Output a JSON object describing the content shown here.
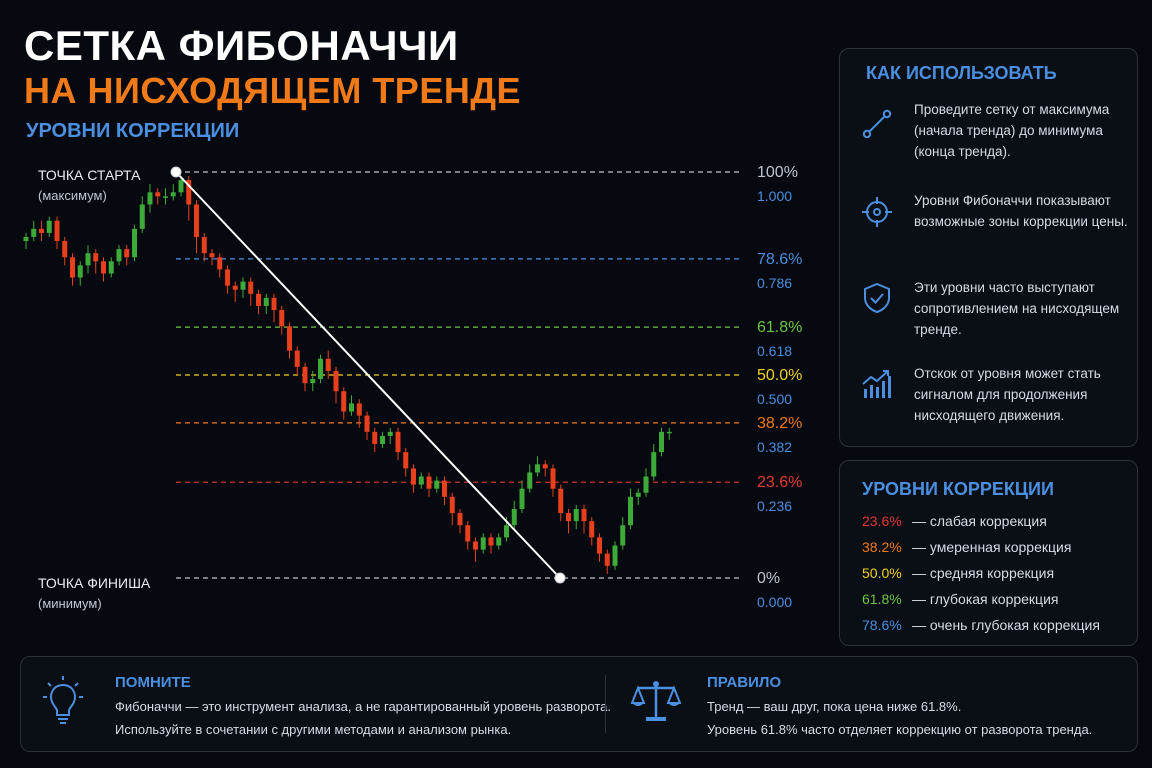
{
  "header": {
    "title_line1": "СЕТКА ФИБОНАЧЧИ",
    "title_line2": "НА НИСХОДЯЩЕМ ТРЕНДЕ",
    "subtitle": "УРОВНИ КОРРЕКЦИИ"
  },
  "chart_data": {
    "type": "candlestick",
    "title": "СЕТКА ФИБОНАЧЧИ НА НИСХОДЯЩЕМ ТРЕНДЕ",
    "start_label": "ТОЧКА СТАРТА",
    "start_sub": "(максимум)",
    "finish_label": "ТОЧКА ФИНИША",
    "finish_sub": "(минимум)",
    "price_range": [
      0,
      1
    ],
    "levels": [
      {
        "pct": "100%",
        "value": 1.0,
        "value_label": "1.000",
        "color": "#bfc5cf"
      },
      {
        "pct": "78.6%",
        "value": 0.786,
        "value_label": "0.786",
        "color": "#4a8fe0"
      },
      {
        "pct": "61.8%",
        "value": 0.618,
        "value_label": "0.618",
        "color": "#6cc644"
      },
      {
        "pct": "50.0%",
        "value": 0.5,
        "value_label": "0.500",
        "color": "#f2d21b"
      },
      {
        "pct": "38.2%",
        "value": 0.382,
        "value_label": "0.382",
        "color": "#f07a18"
      },
      {
        "pct": "23.6%",
        "value": 0.236,
        "value_label": "0.236",
        "color": "#e53935"
      },
      {
        "pct": "0%",
        "value": 0.0,
        "value_label": "0.000",
        "color": "#bfc5cf"
      }
    ],
    "candles": [
      [
        0.83,
        0.84,
        0.81,
        0.85
      ],
      [
        0.84,
        0.86,
        0.83,
        0.88
      ],
      [
        0.86,
        0.85,
        0.83,
        0.88
      ],
      [
        0.85,
        0.88,
        0.84,
        0.89
      ],
      [
        0.88,
        0.83,
        0.81,
        0.89
      ],
      [
        0.83,
        0.79,
        0.77,
        0.84
      ],
      [
        0.79,
        0.74,
        0.72,
        0.8
      ],
      [
        0.74,
        0.77,
        0.72,
        0.78
      ],
      [
        0.77,
        0.8,
        0.75,
        0.82
      ],
      [
        0.8,
        0.78,
        0.75,
        0.81
      ],
      [
        0.78,
        0.75,
        0.73,
        0.79
      ],
      [
        0.75,
        0.78,
        0.74,
        0.79
      ],
      [
        0.78,
        0.81,
        0.77,
        0.82
      ],
      [
        0.81,
        0.79,
        0.77,
        0.82
      ],
      [
        0.79,
        0.86,
        0.78,
        0.87
      ],
      [
        0.86,
        0.92,
        0.85,
        0.94
      ],
      [
        0.92,
        0.95,
        0.9,
        0.97
      ],
      [
        0.95,
        0.94,
        0.92,
        0.96
      ],
      [
        0.94,
        0.94,
        0.92,
        0.96
      ],
      [
        0.94,
        0.95,
        0.93,
        0.97
      ],
      [
        0.95,
        0.98,
        0.94,
        0.99
      ],
      [
        0.98,
        0.92,
        0.88,
        0.99
      ],
      [
        0.92,
        0.84,
        0.8,
        0.93
      ],
      [
        0.84,
        0.8,
        0.78,
        0.85
      ],
      [
        0.8,
        0.79,
        0.77,
        0.81
      ],
      [
        0.79,
        0.76,
        0.74,
        0.8
      ],
      [
        0.76,
        0.72,
        0.7,
        0.77
      ],
      [
        0.72,
        0.71,
        0.68,
        0.73
      ],
      [
        0.71,
        0.73,
        0.69,
        0.74
      ],
      [
        0.73,
        0.7,
        0.67,
        0.74
      ],
      [
        0.7,
        0.67,
        0.65,
        0.71
      ],
      [
        0.67,
        0.69,
        0.65,
        0.7
      ],
      [
        0.69,
        0.66,
        0.63,
        0.7
      ],
      [
        0.66,
        0.62,
        0.6,
        0.67
      ],
      [
        0.62,
        0.56,
        0.54,
        0.63
      ],
      [
        0.56,
        0.52,
        0.5,
        0.57
      ],
      [
        0.52,
        0.48,
        0.46,
        0.53
      ],
      [
        0.48,
        0.49,
        0.46,
        0.51
      ],
      [
        0.49,
        0.54,
        0.48,
        0.55
      ],
      [
        0.54,
        0.51,
        0.49,
        0.56
      ],
      [
        0.51,
        0.46,
        0.43,
        0.52
      ],
      [
        0.46,
        0.41,
        0.39,
        0.47
      ],
      [
        0.41,
        0.43,
        0.4,
        0.45
      ],
      [
        0.43,
        0.4,
        0.37,
        0.44
      ],
      [
        0.4,
        0.36,
        0.34,
        0.41
      ],
      [
        0.36,
        0.33,
        0.31,
        0.37
      ],
      [
        0.33,
        0.35,
        0.32,
        0.36
      ],
      [
        0.35,
        0.36,
        0.33,
        0.37
      ],
      [
        0.36,
        0.31,
        0.29,
        0.37
      ],
      [
        0.31,
        0.27,
        0.25,
        0.32
      ],
      [
        0.27,
        0.23,
        0.21,
        0.28
      ],
      [
        0.23,
        0.25,
        0.22,
        0.26
      ],
      [
        0.25,
        0.22,
        0.2,
        0.26
      ],
      [
        0.22,
        0.24,
        0.21,
        0.25
      ],
      [
        0.24,
        0.2,
        0.18,
        0.25
      ],
      [
        0.2,
        0.16,
        0.13,
        0.21
      ],
      [
        0.16,
        0.13,
        0.11,
        0.17
      ],
      [
        0.13,
        0.09,
        0.07,
        0.14
      ],
      [
        0.09,
        0.07,
        0.04,
        0.1
      ],
      [
        0.07,
        0.1,
        0.06,
        0.11
      ],
      [
        0.1,
        0.08,
        0.06,
        0.11
      ],
      [
        0.08,
        0.1,
        0.07,
        0.11
      ],
      [
        0.1,
        0.13,
        0.09,
        0.15
      ],
      [
        0.13,
        0.17,
        0.12,
        0.19
      ],
      [
        0.17,
        0.22,
        0.16,
        0.24
      ],
      [
        0.22,
        0.26,
        0.21,
        0.28
      ],
      [
        0.26,
        0.28,
        0.25,
        0.3
      ],
      [
        0.28,
        0.27,
        0.25,
        0.29
      ],
      [
        0.27,
        0.22,
        0.2,
        0.28
      ],
      [
        0.22,
        0.16,
        0.14,
        0.23
      ],
      [
        0.16,
        0.14,
        0.11,
        0.17
      ],
      [
        0.14,
        0.17,
        0.12,
        0.18
      ],
      [
        0.17,
        0.14,
        0.11,
        0.18
      ],
      [
        0.14,
        0.1,
        0.08,
        0.15
      ],
      [
        0.1,
        0.06,
        0.04,
        0.11
      ],
      [
        0.06,
        0.03,
        0.01,
        0.07
      ],
      [
        0.03,
        0.08,
        0.02,
        0.09
      ],
      [
        0.08,
        0.13,
        0.07,
        0.15
      ],
      [
        0.13,
        0.2,
        0.12,
        0.22
      ],
      [
        0.2,
        0.21,
        0.18,
        0.22
      ],
      [
        0.21,
        0.25,
        0.2,
        0.27
      ],
      [
        0.25,
        0.31,
        0.24,
        0.33
      ],
      [
        0.31,
        0.36,
        0.3,
        0.37
      ],
      [
        0.36,
        0.36,
        0.34,
        0.37
      ]
    ],
    "bull_color": "#3eaa3a",
    "bear_color": "#e8401f",
    "line_color": "#ffffff"
  },
  "how": {
    "title": "КАК ИСПОЛЬЗОВАТЬ",
    "items": [
      {
        "icon": "line-tool-icon",
        "text": "Проведите сетку от максимума (начала тренда) до минимума (конца тренда)."
      },
      {
        "icon": "target-icon",
        "text": "Уровни Фибоначчи показывают возможные зоны коррекции цены."
      },
      {
        "icon": "shield-check-icon",
        "text": "Эти уровни часто выступают сопротивлением на нисходящем тренде."
      },
      {
        "icon": "growth-chart-icon",
        "text": "Отскок от уровня может стать сигналом для продолжения нисходящего движения."
      }
    ]
  },
  "levels_panel": {
    "title": "УРОВНИ КОРРЕКЦИИ",
    "rows": [
      {
        "pct": "23.6%",
        "desc": "— слабая коррекция",
        "color": "#e53935"
      },
      {
        "pct": "38.2%",
        "desc": "— умеренная коррекция",
        "color": "#f07a18"
      },
      {
        "pct": "50.0%",
        "desc": "— средняя коррекция",
        "color": "#f2d21b"
      },
      {
        "pct": "61.8%",
        "desc": "— глубокая коррекция",
        "color": "#6cc644"
      },
      {
        "pct": "78.6%",
        "desc": "— очень глубокая коррекция",
        "color": "#4a8fe0"
      }
    ]
  },
  "remember": {
    "title": "ПОМНИТЕ",
    "icon": "lightbulb-icon",
    "line1": "Фибоначчи — это инструмент анализа, а не гарантированный уровень разворота.",
    "line2": "Используйте в сочетании с другими методами и анализом рынка."
  },
  "rule": {
    "title": "ПРАВИЛО",
    "icon": "scales-icon",
    "line1": "Тренд — ваш друг, пока цена ниже 61.8%.",
    "line2": "Уровень 61.8% часто отделяет коррекцию от разворота тренда."
  },
  "accent_color": "#4a8fe0"
}
